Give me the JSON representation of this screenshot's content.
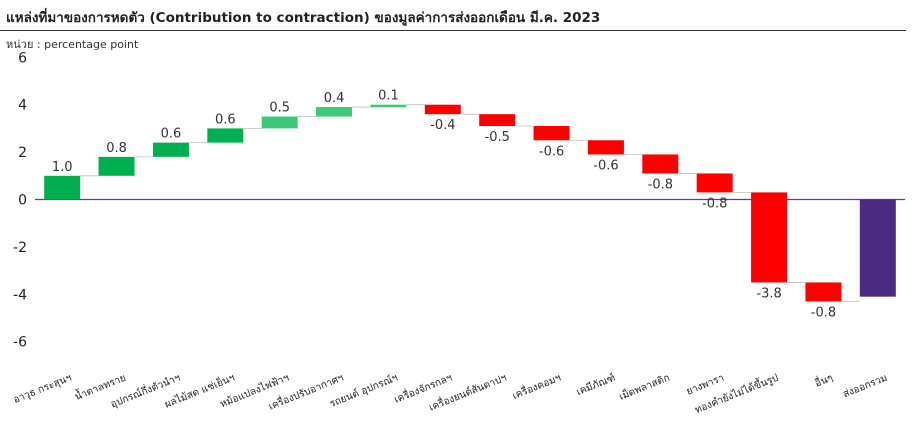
{
  "header": {
    "title": "แหล่งที่มาของการหดตัว (Contribution to contraction) ของมูลค่าการส่งออกเดือน มี.ค. 2023",
    "unit": "หน่วย : percentage point"
  },
  "colors": {
    "positive": "#00b050",
    "positive_small": "#3cc878",
    "negative": "#ff0000",
    "total": "#4b2a80",
    "zero_line": "#7030a0",
    "connector": "#bfbfbf"
  },
  "chart_data": {
    "type": "bar",
    "subtype": "waterfall",
    "title": "แหล่งที่มาของการหดตัว (Contribution to contraction) ของมูลค่าการส่งออกเดือน มี.ค. 2023",
    "ylabel": "percentage point",
    "ylim": [
      -7,
      6
    ],
    "yticks": [
      6,
      4,
      2,
      0,
      -2,
      -4,
      -6
    ],
    "categories": [
      "อาวุธ กระสุนฯ",
      "น้ำตาลทราย",
      "อุปกรณ์กึ่งตัวนำฯ",
      "ผลไม้สด แช่เย็นฯ",
      "หม้อแปลงไฟฟ้าฯ",
      "เครื่องปรับอากาศฯ",
      "รถยนต์ อุปกรณ์ฯ",
      "เครื่องจักรกลฯ",
      "เครื่องยนต์สันดาปฯ",
      "เครื่องคอมฯ",
      "เคมีภัณฑ์",
      "เม็ดพลาสติก",
      "ยางพารา",
      "ทองคำยังไม่ได้ขึ้นรูป",
      "อื่นๆ",
      "ส่งออกรวม"
    ],
    "values": [
      1.0,
      0.8,
      0.6,
      0.6,
      0.5,
      0.4,
      0.1,
      -0.4,
      -0.5,
      -0.6,
      -0.6,
      -0.8,
      -0.8,
      -3.8,
      -0.8,
      -4.1
    ],
    "labels": [
      "1.0",
      "0.8",
      "0.6",
      "0.6",
      "0.5",
      "0.4",
      "0.1",
      "-0.4",
      "-0.5",
      "-0.6",
      "-0.6",
      "-0.8",
      "-0.8",
      "-3.8",
      "-0.8",
      ""
    ],
    "total_index": 15
  }
}
